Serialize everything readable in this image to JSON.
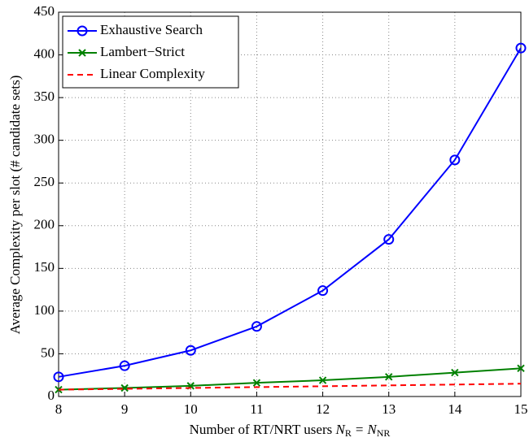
{
  "chart_data": {
    "type": "line",
    "x": [
      8,
      9,
      10,
      11,
      12,
      13,
      14,
      15
    ],
    "xlim": [
      8,
      15
    ],
    "xticks": [
      8,
      9,
      10,
      11,
      12,
      13,
      14,
      15
    ],
    "ylim": [
      0,
      450
    ],
    "yticks": [
      0,
      50,
      100,
      150,
      200,
      250,
      300,
      350,
      400,
      450
    ],
    "grid": true,
    "legend": "upper left",
    "y_label": "Average Complexity per slot (# candidate sets)",
    "x_label": {
      "text": "Number of RT/NRT users",
      "math": [
        "N",
        "R",
        "=",
        "N",
        "NR"
      ]
    },
    "series": [
      {
        "name": "Exhaustive Search",
        "color": "#0000ff",
        "marker": "o",
        "linestyle": "solid",
        "values": [
          23,
          36,
          54,
          82,
          124,
          184,
          277,
          408
        ]
      },
      {
        "name": "Lambert−Strict",
        "color": "#008000",
        "marker": "x",
        "linestyle": "solid",
        "values": [
          8,
          10,
          12.5,
          16,
          19,
          23,
          28,
          33
        ]
      },
      {
        "name": "Linear Complexity",
        "color": "#ff0000",
        "marker": "none",
        "linestyle": "dashed",
        "values": [
          8,
          9,
          10,
          11,
          12,
          13,
          14,
          15
        ]
      }
    ]
  }
}
